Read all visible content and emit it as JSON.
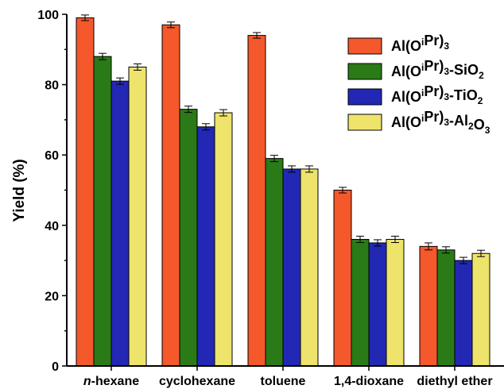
{
  "chart_data": {
    "type": "bar",
    "title": "",
    "xlabel": "",
    "ylabel": "Yield (%)",
    "ylim": [
      0,
      100
    ],
    "yticks": [
      "0",
      "20",
      "40",
      "60",
      "80",
      "100"
    ],
    "grid": false,
    "legend_position": "top-right",
    "categories": [
      {
        "prefix": "n",
        "text": "-hexane"
      },
      {
        "prefix": "",
        "text": "cyclohexane"
      },
      {
        "prefix": "",
        "text": "toluene"
      },
      {
        "prefix": "",
        "text": "1,4-dioxane"
      },
      {
        "prefix": "",
        "text": "diethyl ether"
      }
    ],
    "series": [
      {
        "name": "Al(OiPr)3",
        "legend_parts": [
          [
            "Al(O",
            ""
          ],
          [
            "i",
            "sup"
          ],
          [
            "Pr)",
            ""
          ],
          [
            "3",
            "sub"
          ]
        ],
        "color": "#f4582b",
        "values": [
          99,
          97,
          94,
          50,
          34
        ],
        "errors": [
          0.8,
          0.8,
          0.8,
          0.8,
          1.0
        ]
      },
      {
        "name": "Al(OiPr)3-SiO2",
        "legend_parts": [
          [
            "Al(O",
            ""
          ],
          [
            "i",
            "sup"
          ],
          [
            "Pr)",
            ""
          ],
          [
            "3",
            "sub"
          ],
          [
            "-SiO",
            ""
          ],
          [
            "2",
            "sub"
          ]
        ],
        "color": "#2a7a18",
        "values": [
          88,
          73,
          59,
          36,
          33
        ],
        "errors": [
          0.9,
          0.9,
          0.9,
          0.9,
          0.9
        ]
      },
      {
        "name": "Al(OiPr)3-TiO2",
        "legend_parts": [
          [
            "Al(O",
            ""
          ],
          [
            "i",
            "sup"
          ],
          [
            "Pr)",
            ""
          ],
          [
            "3",
            "sub"
          ],
          [
            "-TiO",
            ""
          ],
          [
            "2",
            "sub"
          ]
        ],
        "color": "#2228b4",
        "values": [
          81,
          68,
          56,
          35,
          30
        ],
        "errors": [
          0.9,
          0.9,
          0.9,
          0.9,
          0.9
        ]
      },
      {
        "name": "Al(OiPr)3-Al2O3",
        "legend_parts": [
          [
            "Al(O",
            ""
          ],
          [
            "i",
            "sup"
          ],
          [
            "Pr)",
            ""
          ],
          [
            "3",
            "sub"
          ],
          [
            "-Al",
            ""
          ],
          [
            "2",
            "sub"
          ],
          [
            "O",
            ""
          ],
          [
            "3",
            "sub"
          ]
        ],
        "color": "#eee36b",
        "values": [
          85,
          72,
          56,
          36,
          32
        ],
        "errors": [
          0.9,
          0.9,
          0.9,
          0.9,
          0.9
        ]
      }
    ]
  }
}
